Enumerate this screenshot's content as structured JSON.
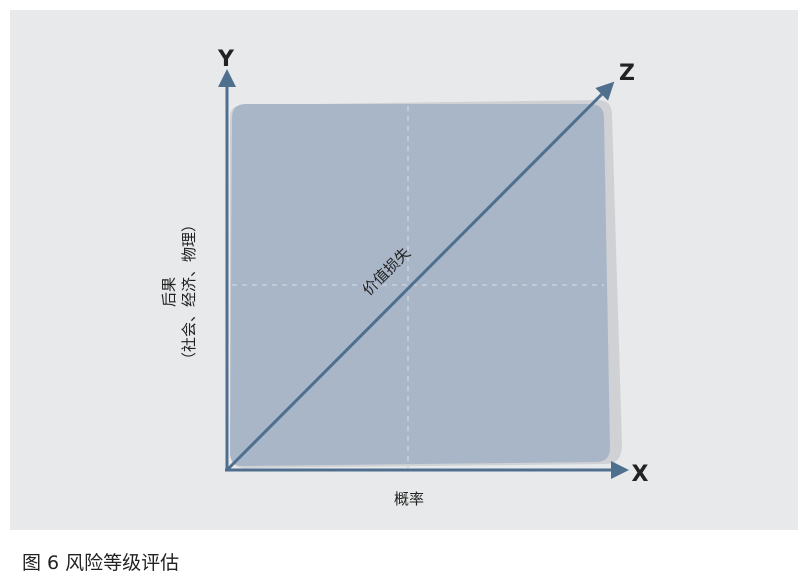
{
  "figure": {
    "caption": "图 6 风险等级评估"
  },
  "axes": {
    "x_label": "X",
    "y_label": "Y",
    "z_label": "Z",
    "x_title": "概率",
    "y_title_line1": "后果",
    "y_title_line2": "（社会、经济、物理）",
    "diagonal_label": "价值损失"
  },
  "colors": {
    "background_panel": "#e8e9ea",
    "plane_fill": "#a8b6c8",
    "plane_shadow": "#cfd1d4",
    "axis_color": "#4f6f8f",
    "grid_dash": "#c9d2dc",
    "text_dark": "#222222"
  }
}
